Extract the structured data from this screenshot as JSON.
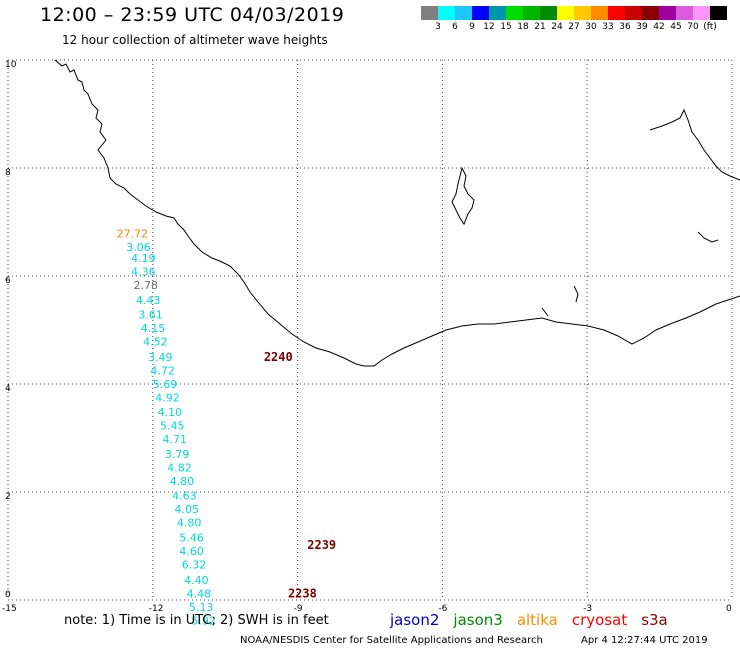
{
  "header": {
    "title": "12:00 – 23:59 UTC 04/03/2019",
    "subtitle": "12 hour collection of altimeter wave heights"
  },
  "colorbar": {
    "colors": [
      "#808080",
      "#00ffff",
      "#1ec8ff",
      "#0000ff",
      "#0096aa",
      "#00dc00",
      "#00b400",
      "#008c00",
      "#ffff00",
      "#ffc800",
      "#ff8c00",
      "#ff0000",
      "#c80000",
      "#8c0000",
      "#a000a0",
      "#dc5adc",
      "#ff96ff",
      "#000000"
    ],
    "labels": [
      "3",
      "6",
      "9",
      "12",
      "15",
      "18",
      "21",
      "24",
      "27",
      "30",
      "33",
      "36",
      "39",
      "42",
      "45",
      "70",
      "(ft)"
    ]
  },
  "axes": {
    "x_ticks": [
      "-15",
      "-12",
      "-9",
      "-6",
      "-3",
      "0"
    ],
    "y_ticks": [
      "0",
      "2",
      "4",
      "6",
      "8",
      "10"
    ],
    "lon_range": [
      -15,
      0
    ],
    "lat_range": [
      0,
      10
    ]
  },
  "observations": [
    {
      "value": "27.72",
      "color": "#ff8c00",
      "lon": -12.75,
      "lat": 6.71
    },
    {
      "value": "3.06",
      "color": "#00d8e0",
      "lon": -12.55,
      "lat": 6.46
    },
    {
      "value": "4.19",
      "color": "#00d8e0",
      "lon": -12.45,
      "lat": 6.26
    },
    {
      "value": "4.36",
      "color": "#00d8e0",
      "lon": -12.45,
      "lat": 6.01
    },
    {
      "value": "2.78",
      "color": "#707070",
      "lon": -12.4,
      "lat": 5.76
    },
    {
      "value": "4.43",
      "color": "#00d8e0",
      "lon": -12.35,
      "lat": 5.48
    },
    {
      "value": "3.61",
      "color": "#00d8e0",
      "lon": -12.3,
      "lat": 5.21
    },
    {
      "value": "4.15",
      "color": "#00d8e0",
      "lon": -12.25,
      "lat": 4.96
    },
    {
      "value": "4.52",
      "color": "#00d8e0",
      "lon": -12.2,
      "lat": 4.71
    },
    {
      "value": "3.49",
      "color": "#00d8e0",
      "lon": -12.1,
      "lat": 4.43
    },
    {
      "value": "4.72",
      "color": "#00d8e0",
      "lon": -12.05,
      "lat": 4.18
    },
    {
      "value": "5.69",
      "color": "#00d8e0",
      "lon": -12.0,
      "lat": 3.93
    },
    {
      "value": "4.92",
      "color": "#00d8e0",
      "lon": -11.95,
      "lat": 3.68
    },
    {
      "value": "4.10",
      "color": "#00d8e0",
      "lon": -11.9,
      "lat": 3.41
    },
    {
      "value": "5.45",
      "color": "#00d8e0",
      "lon": -11.85,
      "lat": 3.16
    },
    {
      "value": "4.71",
      "color": "#00d8e0",
      "lon": -11.8,
      "lat": 2.91
    },
    {
      "value": "3.79",
      "color": "#00d8e0",
      "lon": -11.75,
      "lat": 2.63
    },
    {
      "value": "4.82",
      "color": "#00d8e0",
      "lon": -11.7,
      "lat": 2.38
    },
    {
      "value": "4.80",
      "color": "#00d8e0",
      "lon": -11.65,
      "lat": 2.13
    },
    {
      "value": "4.63",
      "color": "#00d8e0",
      "lon": -11.6,
      "lat": 1.86
    },
    {
      "value": "4.05",
      "color": "#00d8e0",
      "lon": -11.55,
      "lat": 1.61
    },
    {
      "value": "4.80",
      "color": "#00d8e0",
      "lon": -11.5,
      "lat": 1.36
    },
    {
      "value": "5.46",
      "color": "#00d8e0",
      "lon": -11.45,
      "lat": 1.08
    },
    {
      "value": "4.60",
      "color": "#00d8e0",
      "lon": -11.45,
      "lat": 0.83
    },
    {
      "value": "6.32",
      "color": "#00d8e0",
      "lon": -11.4,
      "lat": 0.58
    },
    {
      "value": "4.40",
      "color": "#00d8e0",
      "lon": -11.35,
      "lat": 0.3
    },
    {
      "value": "4.48",
      "color": "#00d8e0",
      "lon": -11.3,
      "lat": 0.05
    },
    {
      "value": "5.13",
      "color": "#00d8e0",
      "lon": -11.25,
      "lat": -0.2
    },
    {
      "value": "5.92",
      "color": "#00d8e0",
      "lon": -11.2,
      "lat": -0.45
    }
  ],
  "passes": [
    {
      "label": "2240",
      "lon": -9.7,
      "lat": 4.43
    },
    {
      "label": "2239",
      "lon": -8.8,
      "lat": 0.94
    },
    {
      "label": "2238",
      "lon": -9.2,
      "lat": 0.05
    }
  ],
  "note": "note:  1) Time is in UTC; 2) SWH is in feet",
  "legend": [
    {
      "label": "jason2",
      "color": "#0000cc"
    },
    {
      "label": "jason3",
      "color": "#008c00"
    },
    {
      "label": "altika",
      "color": "#ff8c00"
    },
    {
      "label": "cryosat",
      "color": "#ff0000"
    },
    {
      "label": "s3a",
      "color": "#8c0000"
    }
  ],
  "footer": {
    "center": "NOAA/NESDIS Center for Satellite Applications and Research",
    "timestamp": "Apr  4 12:27:44 UTC 2019"
  }
}
